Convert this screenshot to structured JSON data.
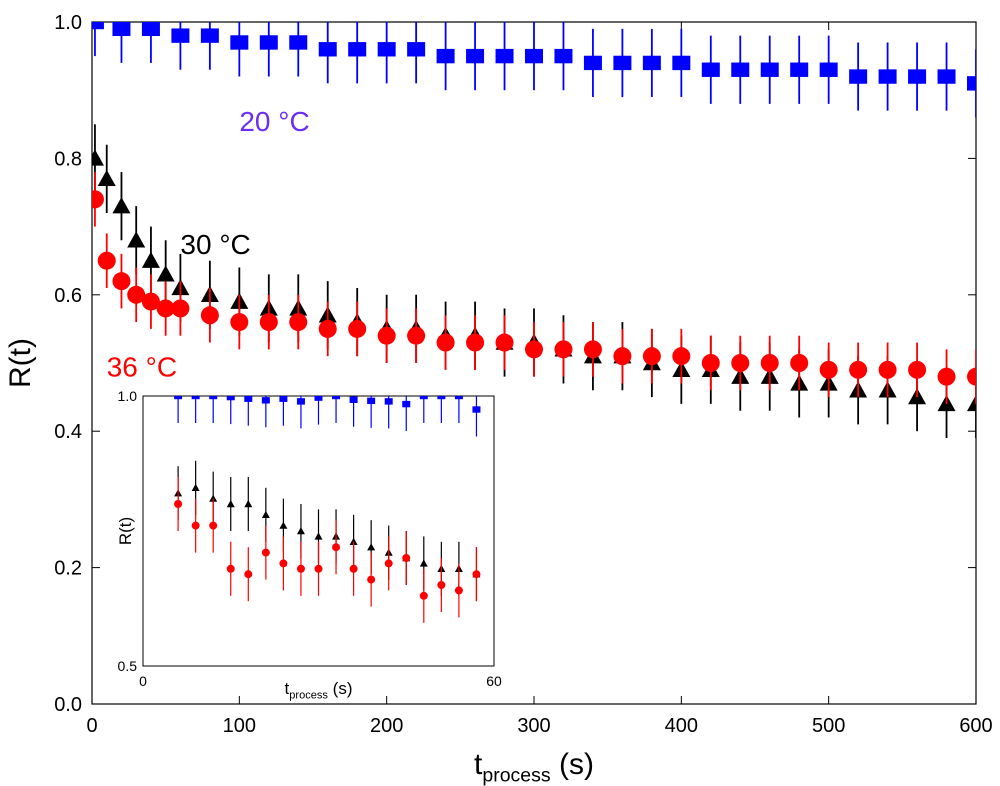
{
  "chart_data": [
    {
      "type": "scatter",
      "title": "",
      "xlabel": "t",
      "xlabel_sub": "process",
      "xlabel_unit": " (s)",
      "ylabel": "R(t)",
      "xlim": [
        0,
        600
      ],
      "ylim": [
        0.0,
        1.0
      ],
      "xticks": [
        0,
        100,
        200,
        300,
        400,
        500,
        600
      ],
      "xtick_labels": [
        "0",
        "100",
        "200",
        "300",
        "400",
        "500",
        "600"
      ],
      "yticks": [
        0.0,
        0.2,
        0.4,
        0.6,
        0.8,
        1.0
      ],
      "ytick_labels": [
        "0.0",
        "0.2",
        "0.4",
        "0.6",
        "0.8",
        "1.0"
      ],
      "grid": false,
      "annotations": [
        {
          "text": "20 °C",
          "x": 100,
          "y": 0.84,
          "color": "#6a2ef2"
        },
        {
          "text": "30 °C",
          "x": 60,
          "y": 0.66,
          "color": "#000000"
        },
        {
          "text": "36 °C",
          "x": 10,
          "y": 0.48,
          "color": "#ff0000"
        }
      ],
      "series": [
        {
          "name": "20 °C",
          "marker": "square",
          "color": "#0000ff",
          "x": [
            2,
            20,
            40,
            60,
            80,
            100,
            120,
            140,
            160,
            180,
            200,
            220,
            240,
            260,
            280,
            300,
            320,
            340,
            360,
            380,
            400,
            420,
            440,
            460,
            480,
            500,
            520,
            540,
            560,
            580,
            600
          ],
          "y": [
            1.0,
            0.99,
            0.99,
            0.98,
            0.98,
            0.97,
            0.97,
            0.97,
            0.96,
            0.96,
            0.96,
            0.96,
            0.95,
            0.95,
            0.95,
            0.95,
            0.95,
            0.94,
            0.94,
            0.94,
            0.94,
            0.93,
            0.93,
            0.93,
            0.93,
            0.93,
            0.92,
            0.92,
            0.92,
            0.92,
            0.91
          ],
          "err": 0.05
        },
        {
          "name": "30 °C",
          "marker": "triangle",
          "color": "#000000",
          "x": [
            2,
            10,
            20,
            30,
            40,
            50,
            60,
            80,
            100,
            120,
            140,
            160,
            180,
            200,
            220,
            240,
            260,
            280,
            300,
            320,
            340,
            360,
            380,
            400,
            420,
            440,
            460,
            480,
            500,
            520,
            540,
            560,
            580,
            600
          ],
          "y": [
            0.8,
            0.77,
            0.73,
            0.68,
            0.65,
            0.63,
            0.61,
            0.6,
            0.59,
            0.58,
            0.58,
            0.57,
            0.56,
            0.55,
            0.55,
            0.54,
            0.54,
            0.53,
            0.53,
            0.52,
            0.51,
            0.51,
            0.5,
            0.49,
            0.49,
            0.48,
            0.48,
            0.47,
            0.47,
            0.46,
            0.46,
            0.45,
            0.44,
            0.44
          ],
          "err": 0.05
        },
        {
          "name": "36 °C",
          "marker": "circle",
          "color": "#ff0000",
          "x": [
            2,
            10,
            20,
            30,
            40,
            50,
            60,
            80,
            100,
            120,
            140,
            160,
            180,
            200,
            220,
            240,
            260,
            280,
            300,
            320,
            340,
            360,
            380,
            400,
            420,
            440,
            460,
            480,
            500,
            520,
            540,
            560,
            580,
            600
          ],
          "y": [
            0.74,
            0.65,
            0.62,
            0.6,
            0.59,
            0.58,
            0.58,
            0.57,
            0.56,
            0.56,
            0.56,
            0.55,
            0.55,
            0.54,
            0.54,
            0.53,
            0.53,
            0.53,
            0.52,
            0.52,
            0.52,
            0.51,
            0.51,
            0.51,
            0.5,
            0.5,
            0.5,
            0.5,
            0.49,
            0.49,
            0.49,
            0.49,
            0.48,
            0.48
          ],
          "err": 0.04
        }
      ]
    },
    {
      "type": "scatter",
      "title": "",
      "xlabel": "t",
      "xlabel_sub": "process",
      "xlabel_unit": " (s)",
      "ylabel": "R(t)",
      "xlim": [
        0,
        60
      ],
      "ylim": [
        0.5,
        1.0
      ],
      "xticks": [
        0,
        60
      ],
      "xtick_labels": [
        "0",
        "60"
      ],
      "yticks": [
        0.5,
        1.0
      ],
      "ytick_labels": [
        "0.5",
        "1.0"
      ],
      "grid": false,
      "series": [
        {
          "name": "20 °C",
          "marker": "square",
          "color": "#0000ff",
          "x": [
            6,
            9,
            12,
            15,
            18,
            21,
            24,
            27,
            30,
            33,
            36,
            39,
            42,
            45,
            48,
            51,
            54,
            57
          ],
          "y": [
            1.0,
            1.0,
            1.0,
            0.998,
            0.995,
            0.992,
            0.995,
            0.99,
            0.997,
            1.0,
            0.993,
            0.991,
            0.99,
            0.985,
            1.0,
            1.0,
            1.0,
            0.975
          ],
          "err": 0.05
        },
        {
          "name": "30 °C",
          "marker": "triangle",
          "color": "#000000",
          "x": [
            6,
            9,
            12,
            15,
            18,
            21,
            24,
            27,
            30,
            33,
            36,
            39,
            42,
            45,
            48,
            51,
            54,
            57
          ],
          "y": [
            0.82,
            0.83,
            0.81,
            0.8,
            0.8,
            0.78,
            0.76,
            0.75,
            0.74,
            0.74,
            0.73,
            0.72,
            0.71,
            0.7,
            0.69,
            0.68,
            0.68,
            0.67
          ],
          "err": 0.05
        },
        {
          "name": "36 °C",
          "marker": "circle",
          "color": "#ff0000",
          "x": [
            6,
            9,
            12,
            15,
            18,
            21,
            24,
            27,
            30,
            33,
            36,
            39,
            42,
            45,
            48,
            51,
            54,
            57
          ],
          "y": [
            0.8,
            0.76,
            0.76,
            0.68,
            0.67,
            0.71,
            0.69,
            0.68,
            0.68,
            0.72,
            0.68,
            0.66,
            0.69,
            0.7,
            0.63,
            0.65,
            0.64,
            0.67
          ],
          "err": 0.05
        }
      ]
    }
  ]
}
